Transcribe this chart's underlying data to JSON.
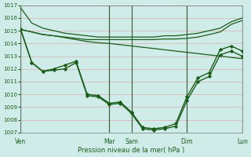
{
  "bg_color": "#d0ece8",
  "grid_color": "#d8b0b0",
  "line_color": "#1a5c1a",
  "xlabel": "Pression niveau de la mer( hPa )",
  "ylim": [
    1007,
    1017
  ],
  "yticks": [
    1007,
    1008,
    1009,
    1010,
    1011,
    1012,
    1013,
    1014,
    1015,
    1016,
    1017
  ],
  "day_labels": [
    "Ven",
    "Mar",
    "Sam",
    "Dim",
    "Lun"
  ],
  "day_positions": [
    0,
    48,
    60,
    90,
    120
  ],
  "xlim": [
    0,
    120
  ],
  "line1_x": [
    0,
    6,
    12,
    18,
    24,
    30,
    36,
    42,
    48,
    54,
    60,
    66,
    72,
    78,
    84,
    90,
    96,
    102,
    108,
    114,
    120
  ],
  "line1_y": [
    1016.8,
    1015.6,
    1015.2,
    1015.0,
    1014.8,
    1014.7,
    1014.6,
    1014.5,
    1014.5,
    1014.5,
    1014.5,
    1014.5,
    1014.5,
    1014.6,
    1014.6,
    1014.7,
    1014.8,
    1015.0,
    1015.2,
    1015.7,
    1016.0
  ],
  "line2_x": [
    0,
    6,
    12,
    18,
    24,
    30,
    36,
    42,
    48,
    54,
    60,
    66,
    72,
    78,
    84,
    90,
    96,
    102,
    108,
    114,
    120
  ],
  "line2_y": [
    1015.1,
    1014.9,
    1014.7,
    1014.6,
    1014.5,
    1014.4,
    1014.3,
    1014.3,
    1014.3,
    1014.3,
    1014.3,
    1014.3,
    1014.3,
    1014.35,
    1014.35,
    1014.4,
    1014.5,
    1014.7,
    1014.9,
    1015.5,
    1015.8
  ],
  "line3_x": [
    0,
    6,
    12,
    18,
    24,
    30,
    36,
    42,
    48,
    54,
    60,
    66,
    72,
    78,
    84,
    90,
    96,
    102,
    108,
    114,
    120
  ],
  "line3_y": [
    1015.1,
    1014.9,
    1014.7,
    1014.6,
    1014.45,
    1014.3,
    1014.15,
    1014.05,
    1014.0,
    1013.9,
    1013.8,
    1013.7,
    1013.6,
    1013.5,
    1013.4,
    1013.3,
    1013.2,
    1013.1,
    1013.0,
    1012.9,
    1012.8
  ],
  "main1_x": [
    0,
    6,
    12,
    18,
    24,
    30,
    36,
    42,
    48,
    54,
    60,
    66,
    72,
    78,
    84,
    90,
    96,
    102,
    108,
    114,
    120
  ],
  "main1_y": [
    1015.1,
    1012.5,
    1011.8,
    1011.9,
    1012.0,
    1012.5,
    1009.9,
    1009.8,
    1009.2,
    1009.3,
    1008.5,
    1007.3,
    1007.2,
    1007.3,
    1007.5,
    1009.5,
    1011.0,
    1011.4,
    1013.1,
    1013.4,
    1013.0
  ],
  "main2_x": [
    0,
    6,
    12,
    18,
    24,
    30,
    36,
    42,
    48,
    54,
    60,
    66,
    72,
    78,
    84,
    90,
    96,
    102,
    108,
    114,
    120
  ],
  "main2_y": [
    1015.1,
    1012.5,
    1011.8,
    1012.0,
    1012.3,
    1012.6,
    1010.0,
    1009.9,
    1009.3,
    1009.4,
    1008.6,
    1007.4,
    1007.3,
    1007.4,
    1007.7,
    1009.8,
    1011.3,
    1011.7,
    1013.5,
    1013.8,
    1013.4
  ]
}
